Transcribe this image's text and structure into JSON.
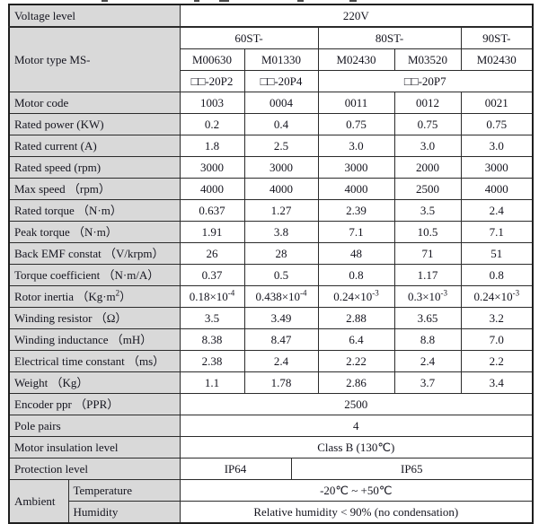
{
  "colors": {
    "label_background": "#d9d9d9",
    "cell_background": "#ffffff",
    "grid_border": "#2b2b2b",
    "text": "#14141e"
  },
  "table": {
    "header": {
      "voltage_label": "Voltage level",
      "voltage_value": "220V",
      "motor_type_label": "Motor type MS-",
      "series": [
        {
          "label": "60ST-"
        },
        {
          "label": "80ST-"
        },
        {
          "label": "90ST-"
        }
      ],
      "models": [
        "M00630",
        "M01330",
        "M02430",
        "M03520",
        "M02430"
      ],
      "power_codes": [
        {
          "label": "□□-20P2"
        },
        {
          "label": "□□-20P4"
        },
        {
          "label": "□□-20P7"
        }
      ]
    },
    "spec_rows": [
      {
        "label": "Motor code",
        "values": [
          "1003",
          "0004",
          "0011",
          "0012",
          "0021"
        ]
      },
      {
        "label": "Rated power (KW)",
        "values": [
          "0.2",
          "0.4",
          "0.75",
          "0.75",
          "0.75"
        ]
      },
      {
        "label": "Rated current (A)",
        "values": [
          "1.8",
          "2.5",
          "3.0",
          "3.0",
          "3.0"
        ]
      },
      {
        "label": "Rated speed (rpm)",
        "values": [
          "3000",
          "3000",
          "3000",
          "2000",
          "3000"
        ]
      },
      {
        "label": "Max speed （rpm）",
        "values": [
          "4000",
          "4000",
          "4000",
          "2500",
          "4000"
        ]
      },
      {
        "label": "Rated torque （N·m）",
        "values": [
          "0.637",
          "1.27",
          "2.39",
          "3.5",
          "2.4"
        ]
      },
      {
        "label": "Peak torque （N·m）",
        "values": [
          "1.91",
          "3.8",
          "7.1",
          "10.5",
          "7.1"
        ]
      },
      {
        "label": "Back EMF constat （V/krpm）",
        "values": [
          "26",
          "28",
          "48",
          "71",
          "51"
        ]
      },
      {
        "label": "Torque coefficient （N·m/A）",
        "values": [
          "0.37",
          "0.5",
          "0.8",
          "1.17",
          "0.8"
        ]
      },
      {
        "label": "Rotor inertia （Kg·m^2）",
        "values": [
          "0.18×10^-4",
          "0.438×10^-4",
          "0.24×10^-3",
          "0.3×10^-3",
          "0.24×10^-3"
        ]
      },
      {
        "label": "Winding resistor （Ω）",
        "values": [
          "3.5",
          "3.49",
          "2.88",
          "3.65",
          "3.2"
        ]
      },
      {
        "label": "Winding inductance （mH）",
        "values": [
          "8.38",
          "8.47",
          "6.4",
          "8.8",
          "7.0"
        ]
      },
      {
        "label": "Electrical time constant （ms）",
        "values": [
          "2.38",
          "2.4",
          "2.22",
          "2.4",
          "2.2"
        ]
      },
      {
        "label": "Weight （Kg）",
        "values": [
          "1.1",
          "1.78",
          "2.86",
          "3.7",
          "3.4"
        ]
      }
    ],
    "full_rows": [
      {
        "label": "Encoder ppr （PPR）",
        "value": "2500"
      },
      {
        "label": "Pole pairs",
        "value": "4"
      },
      {
        "label": "Motor insulation level",
        "value": "Class B (130℃)"
      }
    ],
    "protection": {
      "label": "Protection level",
      "values": [
        "IP64",
        "IP65"
      ]
    },
    "ambient": {
      "label": "Ambient",
      "rows": [
        {
          "label": "Temperature",
          "value": "-20℃ ~ +50℃"
        },
        {
          "label": "Humidity",
          "value": "Relative humidity < 90% (no condensation)"
        }
      ]
    }
  }
}
